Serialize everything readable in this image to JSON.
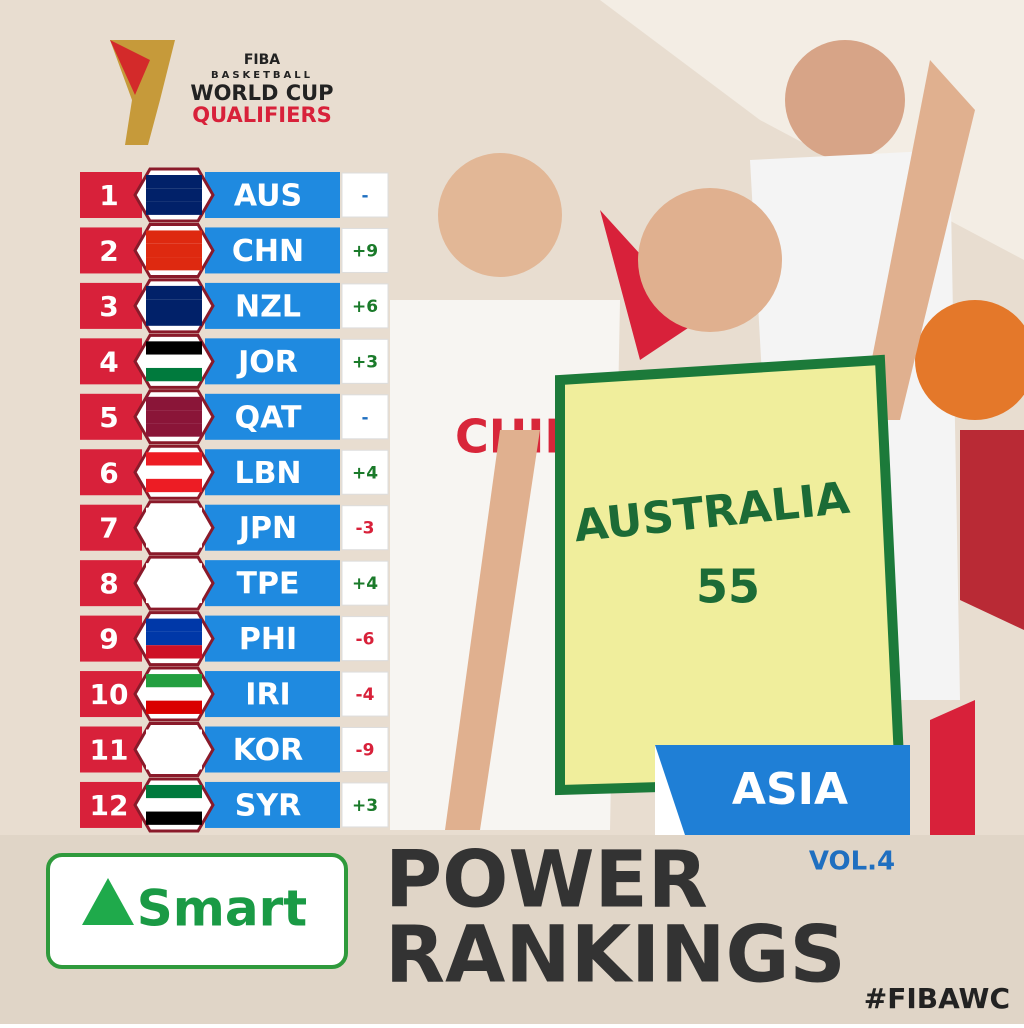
{
  "logo": {
    "org": "FIBA",
    "line1": "BASKETBALL",
    "line2": "WORLD CUP",
    "line3": "QUALIFIERS"
  },
  "rankings": [
    {
      "rank": 1,
      "team": "AUS",
      "change": "-"
    },
    {
      "rank": 2,
      "team": "CHN",
      "change": "+9"
    },
    {
      "rank": 3,
      "team": "NZL",
      "change": "+6"
    },
    {
      "rank": 4,
      "team": "JOR",
      "change": "+3"
    },
    {
      "rank": 5,
      "team": "QAT",
      "change": "-"
    },
    {
      "rank": 6,
      "team": "LBN",
      "change": "+4"
    },
    {
      "rank": 7,
      "team": "JPN",
      "change": "-3"
    },
    {
      "rank": 8,
      "team": "TPE",
      "change": "+4"
    },
    {
      "rank": 9,
      "team": "PHI",
      "change": "-6"
    },
    {
      "rank": 10,
      "team": "IRI",
      "change": "-4"
    },
    {
      "rank": 11,
      "team": "KOR",
      "change": "-9"
    },
    {
      "rank": 12,
      "team": "SYR",
      "change": "+3"
    }
  ],
  "players": {
    "jersey_china": "CHIN",
    "jersey_australia": "AUSTRALIA",
    "number_australia": "55"
  },
  "region": "ASIA",
  "volume": "VOL.4",
  "title_line1": "POWER",
  "title_line2": "RANKINGS",
  "sponsor": "Smart",
  "hashtag": "#FIBAWC"
}
